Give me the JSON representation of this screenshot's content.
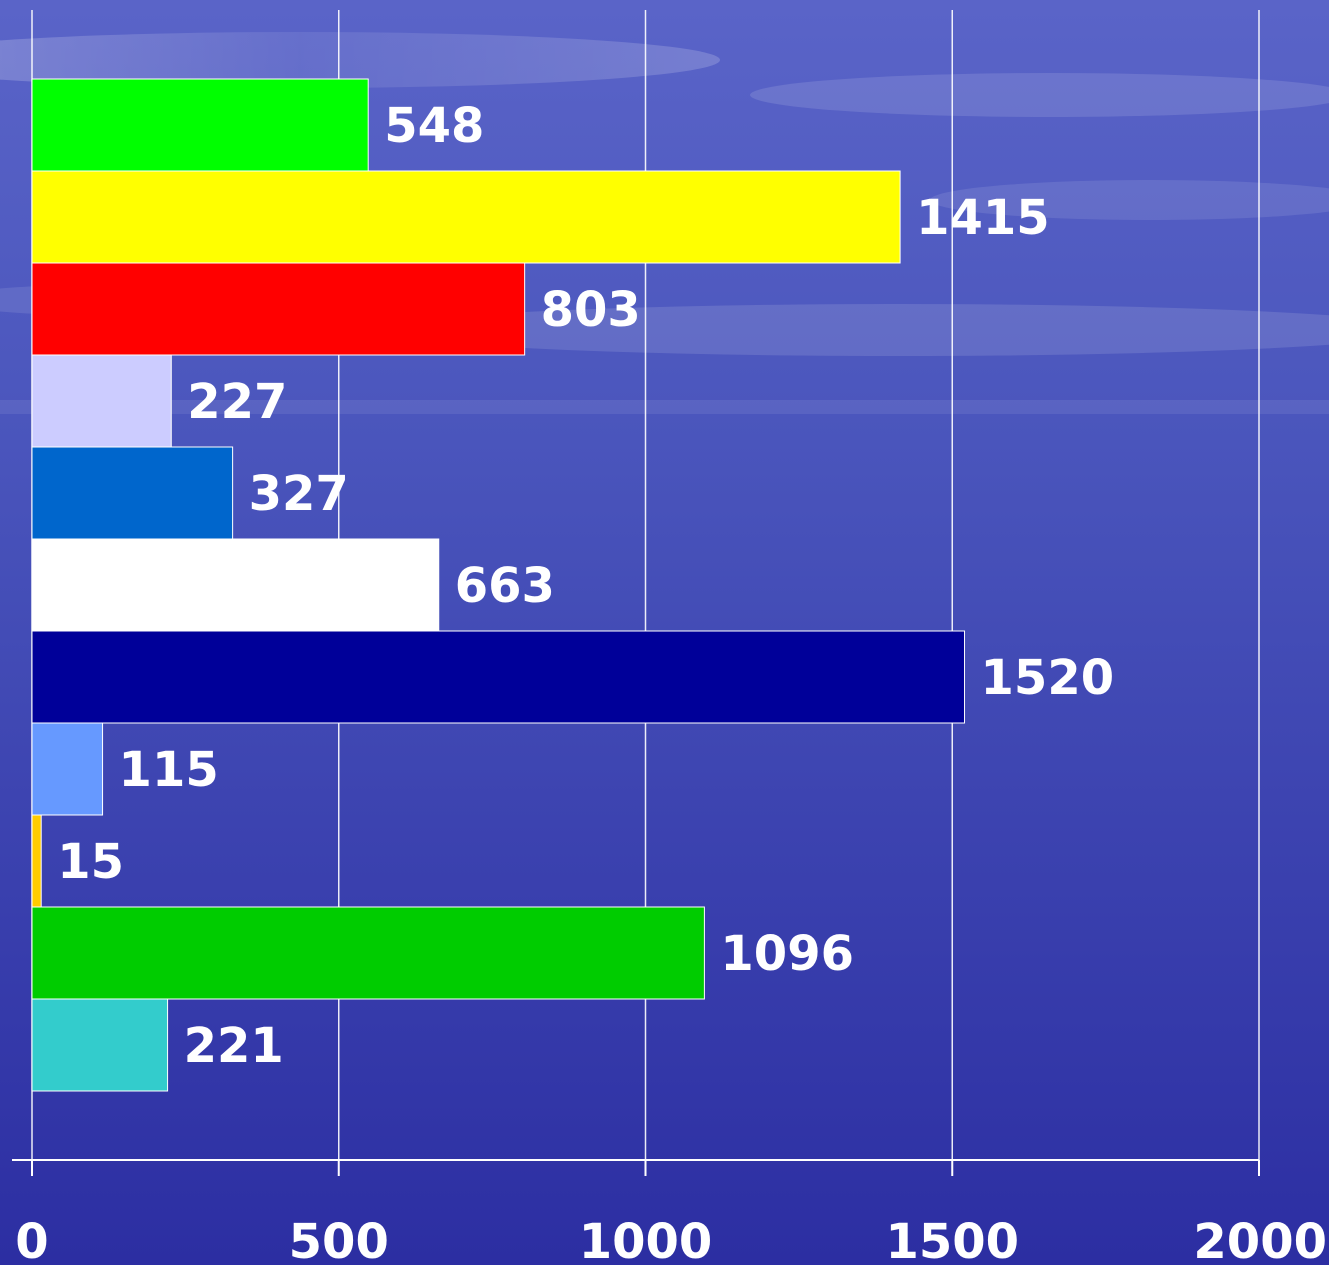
{
  "chart_data": {
    "type": "bar",
    "orientation": "horizontal",
    "title": "",
    "xlabel": "",
    "ylabel": "",
    "xlim": [
      0,
      2000
    ],
    "x_ticks": [
      0,
      500,
      1000,
      1500,
      2000
    ],
    "x_tick_labels": [
      "0",
      "500",
      "1000",
      "1500",
      "2000"
    ],
    "grid": "vertical",
    "legend": "none",
    "data_labels": true,
    "bars": [
      {
        "value": 548,
        "label": "548",
        "color": "#00ff00"
      },
      {
        "value": 1415,
        "label": "1415",
        "color": "#ffff00"
      },
      {
        "value": 803,
        "label": "803",
        "color": "#ff0000"
      },
      {
        "value": 227,
        "label": "227",
        "color": "#ccccff"
      },
      {
        "value": 327,
        "label": "327",
        "color": "#0066cc"
      },
      {
        "value": 663,
        "label": "663",
        "color": "#ffffff"
      },
      {
        "value": 1520,
        "label": "1520",
        "color": "#000099"
      },
      {
        "value": 115,
        "label": "115",
        "color": "#6699ff"
      },
      {
        "value": 15,
        "label": "15",
        "color": "#ffcc00"
      },
      {
        "value": 1096,
        "label": "1096",
        "color": "#00cc00"
      },
      {
        "value": 221,
        "label": "221",
        "color": "#33cccc"
      }
    ]
  },
  "colors": {
    "background_top": "#5560c4",
    "background_bottom": "#2a2aa0",
    "gridline": "#ffffff",
    "text": "#ffffff"
  }
}
